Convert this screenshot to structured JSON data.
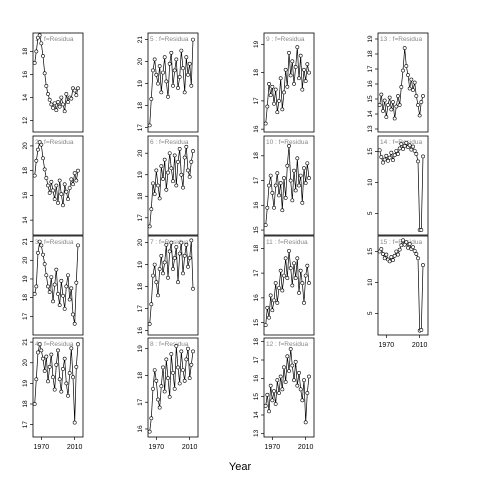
{
  "figure": {
    "xlabel": "Year"
  },
  "chart_data": {
    "type": "line",
    "panel_label_suffix": "f=Residua",
    "xlim": [
      1960,
      2020
    ],
    "x_ticks": [
      "1970",
      "2010"
    ],
    "x_tick_values": [
      1970,
      2010
    ],
    "panels": [
      {
        "label": "1",
        "col": 0,
        "row": 0,
        "ylim": [
          11,
          19.6
        ],
        "yticks": [
          12,
          14,
          16,
          18
        ],
        "show_x_axis": false,
        "x": [
          1962,
          1964,
          1966,
          1968,
          1970,
          1972,
          1974,
          1976,
          1978,
          1980,
          1982,
          1984,
          1986,
          1988,
          1990,
          1992,
          1994,
          1996,
          1998,
          2000,
          2002,
          2004,
          2006,
          2008,
          2010,
          2012,
          2014
        ],
        "values": [
          17,
          18,
          19.2,
          19.4,
          18.7,
          17.6,
          16.1,
          15,
          14.3,
          13.8,
          13.4,
          13.1,
          13.5,
          12.9,
          13.6,
          13.2,
          14,
          13.4,
          12.8,
          14.3,
          13.6,
          14,
          13.9,
          14.8,
          14.6,
          14.2,
          14.8
        ]
      },
      {
        "label": "2",
        "col": 0,
        "row": 1,
        "ylim": [
          12.8,
          20.8
        ],
        "yticks": [
          14,
          16,
          18,
          20
        ],
        "show_x_axis": false,
        "x": [
          1962,
          1964,
          1966,
          1968,
          1970,
          1972,
          1974,
          1976,
          1978,
          1980,
          1982,
          1984,
          1986,
          1988,
          1990,
          1992,
          1994,
          1996,
          1998,
          2000,
          2002,
          2004,
          2006,
          2008,
          2010,
          2012,
          2014
        ],
        "values": [
          17.6,
          18.8,
          19.7,
          20.3,
          20.1,
          19,
          18.1,
          17.4,
          16.8,
          16.2,
          17.1,
          16.4,
          15.7,
          16.8,
          15.4,
          17.2,
          16.1,
          15.2,
          16.9,
          16.3,
          15.7,
          16.6,
          17.3,
          16.9,
          17.8,
          17.2,
          18
        ]
      },
      {
        "label": "3",
        "col": 0,
        "row": 2,
        "ylim": [
          16,
          21.3
        ],
        "yticks": [
          17,
          18,
          19,
          20,
          21
        ],
        "show_x_axis": false,
        "x": [
          1962,
          1964,
          1966,
          1968,
          1970,
          1972,
          1974,
          1976,
          1978,
          1980,
          1982,
          1984,
          1986,
          1988,
          1990,
          1992,
          1994,
          1996,
          1998,
          2000,
          2002,
          2004,
          2006,
          2008,
          2010,
          2012,
          2014
        ],
        "values": [
          18.2,
          18.6,
          20.4,
          21,
          20.8,
          20.3,
          19.8,
          19.2,
          18.6,
          18.3,
          19.1,
          17.8,
          18.7,
          19.5,
          18.2,
          17.6,
          18.9,
          18.1,
          17.4,
          18.6,
          19.2,
          17.9,
          18.5,
          17.1,
          16.6,
          18.8,
          20.8
        ]
      },
      {
        "label": "4",
        "col": 0,
        "row": 3,
        "ylim": [
          16.4,
          21.2
        ],
        "yticks": [
          17,
          18,
          19,
          20,
          21
        ],
        "show_x_axis": true,
        "x": [
          1962,
          1964,
          1966,
          1968,
          1970,
          1972,
          1974,
          1976,
          1978,
          1980,
          1982,
          1984,
          1986,
          1988,
          1990,
          1992,
          1994,
          1996,
          1998,
          2000,
          2002,
          2004,
          2006,
          2008,
          2010,
          2012,
          2014
        ],
        "values": [
          18,
          19.2,
          20.5,
          20.9,
          20.6,
          20.2,
          19.6,
          20.3,
          19.1,
          19.8,
          20.4,
          19.3,
          18.7,
          19.9,
          20.6,
          19.2,
          18.6,
          19.7,
          20.2,
          19,
          18.4,
          19.5,
          20.7,
          19.3,
          17.1,
          19.8,
          20.9
        ]
      },
      {
        "label": "5",
        "col": 1,
        "row": 0,
        "ylim": [
          16.8,
          21.3
        ],
        "yticks": [
          17,
          18,
          19,
          20,
          21
        ],
        "show_x_axis": false,
        "x": [
          1962,
          1964,
          1966,
          1968,
          1970,
          1972,
          1974,
          1976,
          1978,
          1980,
          1982,
          1984,
          1986,
          1988,
          1990,
          1992,
          1994,
          1996,
          1998,
          2000,
          2002,
          2004,
          2006,
          2008,
          2010,
          2012,
          2014
        ],
        "values": [
          17.1,
          18.3,
          19.6,
          20.1,
          19.4,
          19,
          19.8,
          18.6,
          19.5,
          20.2,
          19.1,
          18.4,
          19.9,
          20.4,
          18.9,
          19.6,
          20.1,
          18.8,
          19.3,
          20.5,
          19.7,
          18.6,
          20.2,
          19.4,
          19.9,
          18.9,
          21
        ]
      },
      {
        "label": "6",
        "col": 1,
        "row": 1,
        "ylim": [
          16.2,
          20.8
        ],
        "yticks": [
          17,
          18,
          19,
          20
        ],
        "show_x_axis": false,
        "x": [
          1962,
          1964,
          1966,
          1968,
          1970,
          1972,
          1974,
          1976,
          1978,
          1980,
          1982,
          1984,
          1986,
          1988,
          1990,
          1992,
          1994,
          1996,
          1998,
          2000,
          2002,
          2004,
          2006,
          2008,
          2010,
          2012,
          2014
        ],
        "values": [
          16.6,
          17.4,
          18.6,
          18.1,
          19.2,
          18.5,
          17.9,
          19.4,
          18.8,
          19.7,
          18.3,
          19.1,
          20,
          19.3,
          18.7,
          19.9,
          18.5,
          19.6,
          20.2,
          19,
          18.4,
          19.8,
          20.3,
          19.2,
          18.9,
          19.6,
          20.1
        ]
      },
      {
        "label": "7",
        "col": 1,
        "row": 2,
        "ylim": [
          15.8,
          20.3
        ],
        "yticks": [
          16,
          17,
          18,
          19,
          20
        ],
        "show_x_axis": false,
        "x": [
          1962,
          1964,
          1966,
          1968,
          1970,
          1972,
          1974,
          1976,
          1978,
          1980,
          1982,
          1984,
          1986,
          1988,
          1990,
          1992,
          1994,
          1996,
          1998,
          2000,
          2002,
          2004,
          2006,
          2008,
          2010,
          2012,
          2014
        ],
        "values": [
          16.3,
          17.2,
          18.5,
          19,
          18.2,
          17.6,
          18.8,
          19.4,
          18.6,
          19.1,
          19.9,
          18.4,
          19.6,
          20,
          18.8,
          19.3,
          19.8,
          18.2,
          19.5,
          20,
          18.6,
          19.4,
          19.9,
          18.9,
          19.3,
          20.1,
          17.9
        ]
      },
      {
        "label": "8",
        "col": 1,
        "row": 3,
        "ylim": [
          15.7,
          19.4
        ],
        "yticks": [
          16,
          17,
          18,
          19
        ],
        "show_x_axis": true,
        "x": [
          1962,
          1964,
          1966,
          1968,
          1970,
          1972,
          1974,
          1976,
          1978,
          1980,
          1982,
          1984,
          1986,
          1988,
          1990,
          1992,
          1994,
          1996,
          1998,
          2000,
          2002,
          2004,
          2006,
          2008,
          2010,
          2012,
          2014
        ],
        "values": [
          15.9,
          16.4,
          17.5,
          18.2,
          17.8,
          17.1,
          16.8,
          17.6,
          18.3,
          17.4,
          18.6,
          17.9,
          17.2,
          18.8,
          18.1,
          17.5,
          19.1,
          18.3,
          17.7,
          18.9,
          18.2,
          17.8,
          18.6,
          19,
          17.9,
          18.4,
          18.9
        ]
      },
      {
        "label": "9",
        "col": 2,
        "row": 0,
        "ylim": [
          15.9,
          19.4
        ],
        "yticks": [
          16,
          17,
          18,
          19
        ],
        "show_x_axis": false,
        "x": [
          1962,
          1964,
          1966,
          1968,
          1970,
          1972,
          1974,
          1976,
          1978,
          1980,
          1982,
          1984,
          1986,
          1988,
          1990,
          1992,
          1994,
          1996,
          1998,
          2000,
          2002,
          2004,
          2006,
          2008,
          2010,
          2012,
          2014
        ],
        "values": [
          16.2,
          16.8,
          17.6,
          17.2,
          17.5,
          16.9,
          17.4,
          16.6,
          17,
          17.8,
          16.7,
          17.3,
          18.1,
          17.5,
          18.7,
          17.9,
          18.4,
          17.6,
          18.2,
          18.9,
          17.8,
          18.6,
          17.4,
          18.1,
          17.7,
          18.3,
          18
        ]
      },
      {
        "label": "10",
        "col": 2,
        "row": 1,
        "ylim": [
          14.8,
          18.8
        ],
        "yticks": [
          15,
          16,
          17,
          18
        ],
        "show_x_axis": false,
        "x": [
          1962,
          1964,
          1966,
          1968,
          1970,
          1972,
          1974,
          1976,
          1978,
          1980,
          1982,
          1984,
          1986,
          1988,
          1990,
          1992,
          1994,
          1996,
          1998,
          2000,
          2002,
          2004,
          2006,
          2008,
          2010,
          2012,
          2014
        ],
        "values": [
          15.2,
          15.9,
          16.8,
          17.2,
          16.5,
          15.9,
          16.8,
          17.3,
          16.4,
          16.9,
          15.8,
          17.1,
          16.3,
          17.6,
          18.4,
          17,
          16.2,
          17.4,
          16.6,
          17.9,
          16.8,
          17.2,
          16.1,
          17.5,
          16.9,
          17.7,
          17.1
        ]
      },
      {
        "label": "11",
        "col": 2,
        "row": 2,
        "ylim": [
          14.5,
          18.5
        ],
        "yticks": [
          15,
          16,
          17,
          18
        ],
        "show_x_axis": false,
        "x": [
          1962,
          1964,
          1966,
          1968,
          1970,
          1972,
          1974,
          1976,
          1978,
          1980,
          1982,
          1984,
          1986,
          1988,
          1990,
          1992,
          1994,
          1996,
          1998,
          2000,
          2002,
          2004,
          2006,
          2008,
          2010,
          2012,
          2014
        ],
        "values": [
          14.9,
          15.6,
          15.2,
          16.1,
          15.5,
          15.9,
          16.6,
          15.8,
          16.4,
          17.1,
          16.3,
          16.9,
          17.6,
          16.8,
          17.9,
          17.2,
          16.5,
          17.4,
          16.8,
          17.6,
          16.2,
          17.1,
          16.6,
          15.8,
          16.9,
          17.3,
          16.6
        ]
      },
      {
        "label": "12",
        "col": 2,
        "row": 3,
        "ylim": [
          12.8,
          18.2
        ],
        "yticks": [
          13,
          14,
          15,
          16,
          17,
          18
        ],
        "show_x_axis": true,
        "x": [
          1962,
          1964,
          1966,
          1968,
          1970,
          1972,
          1974,
          1976,
          1978,
          1980,
          1982,
          1984,
          1986,
          1988,
          1990,
          1992,
          1994,
          1996,
          1998,
          2000,
          2002,
          2004,
          2006,
          2008,
          2010,
          2012,
          2014
        ],
        "values": [
          14.5,
          15.1,
          14.2,
          15.6,
          14.8,
          15.3,
          14.6,
          15.9,
          15.2,
          16.1,
          15.4,
          16.6,
          15.8,
          17.2,
          16.4,
          17.6,
          16.7,
          15.9,
          16.9,
          15.6,
          16.3,
          15.4,
          14.8,
          15.9,
          13.6,
          15.2,
          16.1
        ]
      },
      {
        "label": "13",
        "col": 3,
        "row": 0,
        "ylim": [
          12.8,
          19.4
        ],
        "yticks": [
          13,
          14,
          15,
          16,
          17,
          18,
          19
        ],
        "show_x_axis": false,
        "x": [
          1962,
          1964,
          1966,
          1968,
          1970,
          1972,
          1974,
          1976,
          1978,
          1980,
          1982,
          1984,
          1986,
          1988,
          1990,
          1992,
          1994,
          1996,
          1998,
          2000,
          2002,
          2004,
          2006,
          2008,
          2010,
          2012,
          2014
        ],
        "values": [
          14.6,
          15.3,
          14.2,
          14.9,
          13.8,
          14.6,
          15.1,
          14.3,
          14.8,
          13.7,
          14.5,
          15.2,
          14.6,
          15.8,
          16.9,
          18.4,
          17.2,
          16.6,
          15.7,
          16.3,
          15.6,
          16.1,
          15.2,
          14.6,
          13.9,
          14.8,
          15.2
        ]
      },
      {
        "label": "14",
        "col": 3,
        "row": 1,
        "ylim": [
          1.5,
          17.5
        ],
        "yticks": [
          5,
          10,
          15
        ],
        "show_x_axis": false,
        "x": [
          1962,
          1964,
          1966,
          1968,
          1970,
          1972,
          1974,
          1976,
          1978,
          1980,
          1982,
          1984,
          1986,
          1988,
          1990,
          1992,
          1994,
          1996,
          1998,
          2000,
          2002,
          2004,
          2006,
          2008,
          2010,
          2012,
          2014
        ],
        "values": [
          15.2,
          14.1,
          13.2,
          13.7,
          14.3,
          13.5,
          14,
          14.8,
          13.6,
          14.4,
          15.1,
          14.6,
          15.5,
          16.2,
          15.4,
          15.9,
          16.4,
          15.7,
          16,
          15.3,
          15.8,
          15.1,
          14.6,
          13.4,
          2.3,
          2.3,
          14.2
        ]
      },
      {
        "label": "15",
        "col": 3,
        "row": 2,
        "ylim": [
          1.5,
          17.5
        ],
        "yticks": [
          5,
          10,
          15
        ],
        "show_x_axis": true,
        "x": [
          1962,
          1964,
          1966,
          1968,
          1970,
          1972,
          1974,
          1976,
          1978,
          1980,
          1982,
          1984,
          1986,
          1988,
          1990,
          1992,
          1994,
          1996,
          1998,
          2000,
          2002,
          2004,
          2006,
          2008,
          2010,
          2012,
          2014
        ],
        "values": [
          15,
          15.4,
          14.6,
          13.9,
          14.5,
          13.7,
          13.4,
          14.1,
          13.6,
          14.3,
          15,
          14.5,
          15.3,
          16,
          16.8,
          16.1,
          16.5,
          15.6,
          16.2,
          15.4,
          15.7,
          15.1,
          14.6,
          13.9,
          2.2,
          2.3,
          12.8
        ]
      }
    ]
  }
}
